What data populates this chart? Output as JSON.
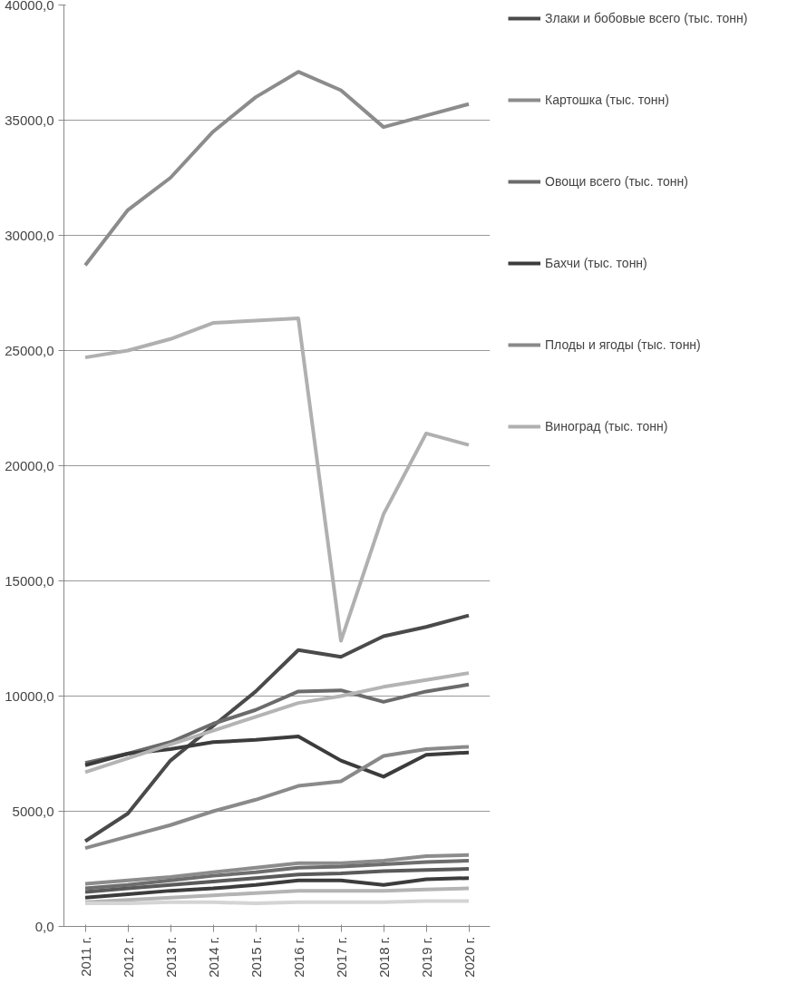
{
  "chart_data": {
    "type": "line",
    "categories": [
      "2011 г.",
      "2012 г.",
      "2013 г.",
      "2014 г.",
      "2015 г.",
      "2016 г.",
      "2017 г.",
      "2018 г.",
      "2019 г.",
      "2020 г."
    ],
    "ylim": [
      0,
      40000
    ],
    "yticks": [
      {
        "value": 0,
        "label": "0,0"
      },
      {
        "value": 5000,
        "label": "5000,0"
      },
      {
        "value": 10000,
        "label": "10000,0"
      },
      {
        "value": 15000,
        "label": "15000,0"
      },
      {
        "value": 20000,
        "label": "20000,0"
      },
      {
        "value": 25000,
        "label": "25000,0"
      },
      {
        "value": 30000,
        "label": "30000,0"
      },
      {
        "value": 35000,
        "label": "35000,0"
      },
      {
        "value": 40000,
        "label": "40000,0"
      }
    ],
    "grid": "y",
    "legend": "right",
    "marker": "none",
    "line_style": "solid",
    "series": [
      {
        "name": "Злаки и бобовые всего (тыс. тонн)",
        "color": "#4a4a4a",
        "values": [
          3700,
          4900,
          7200,
          8700,
          10200,
          12000,
          11700,
          12600,
          13000,
          13500
        ]
      },
      {
        "name": "Картошка (тыс. тонн)",
        "color": "#8c8c8c",
        "values": [
          28700,
          31100,
          32500,
          34500,
          36000,
          37100,
          36300,
          34700,
          35200,
          35700
        ]
      },
      {
        "name": "Овощи всего (тыс. тонн)",
        "color": "#6b6b6b",
        "values": [
          7100,
          7500,
          8000,
          8800,
          9400,
          10200,
          10250,
          9750,
          10200,
          10500
        ]
      },
      {
        "name": "Бахчи (тыс. тонн)",
        "color": "#3c3c3c",
        "values": [
          7000,
          7500,
          7700,
          8000,
          8100,
          8250,
          7200,
          6500,
          7450,
          7550
        ]
      },
      {
        "name": "Плоды и ягоды (тыс. тонн)",
        "color": "#8a8a8a",
        "values": [
          3400,
          3900,
          4400,
          5000,
          5500,
          6100,
          6300,
          7400,
          7700,
          7800
        ]
      },
      {
        "name": "Виноград (тыс. тонн)",
        "color": "#b0b0b0",
        "values": [
          24700,
          25000,
          25500,
          26200,
          26300,
          26400,
          12400,
          17900,
          21400,
          20900
        ]
      },
      {
        "color": "#b4b4b4",
        "values": [
          6700,
          7300,
          7900,
          8500,
          9100,
          9700,
          10000,
          10400,
          10700,
          11000
        ]
      },
      {
        "color": "#8c8c8c",
        "values": [
          1850,
          2000,
          2150,
          2350,
          2550,
          2750,
          2750,
          2850,
          3050,
          3100
        ]
      },
      {
        "color": "#6e6e6e",
        "values": [
          1650,
          1800,
          2000,
          2200,
          2350,
          2550,
          2600,
          2700,
          2800,
          2850
        ]
      },
      {
        "color": "#5a5a5a",
        "values": [
          1500,
          1650,
          1800,
          1950,
          2100,
          2250,
          2300,
          2400,
          2450,
          2500
        ]
      },
      {
        "color": "#3c3c3c",
        "values": [
          1250,
          1400,
          1550,
          1650,
          1800,
          2000,
          2000,
          1800,
          2050,
          2100
        ]
      },
      {
        "color": "#b4b4b4",
        "values": [
          1050,
          1150,
          1250,
          1350,
          1450,
          1550,
          1550,
          1550,
          1600,
          1650
        ]
      },
      {
        "color": "#d4d4d4",
        "values": [
          1000,
          1000,
          1050,
          1050,
          1000,
          1050,
          1050,
          1050,
          1100,
          1100
        ]
      }
    ]
  }
}
